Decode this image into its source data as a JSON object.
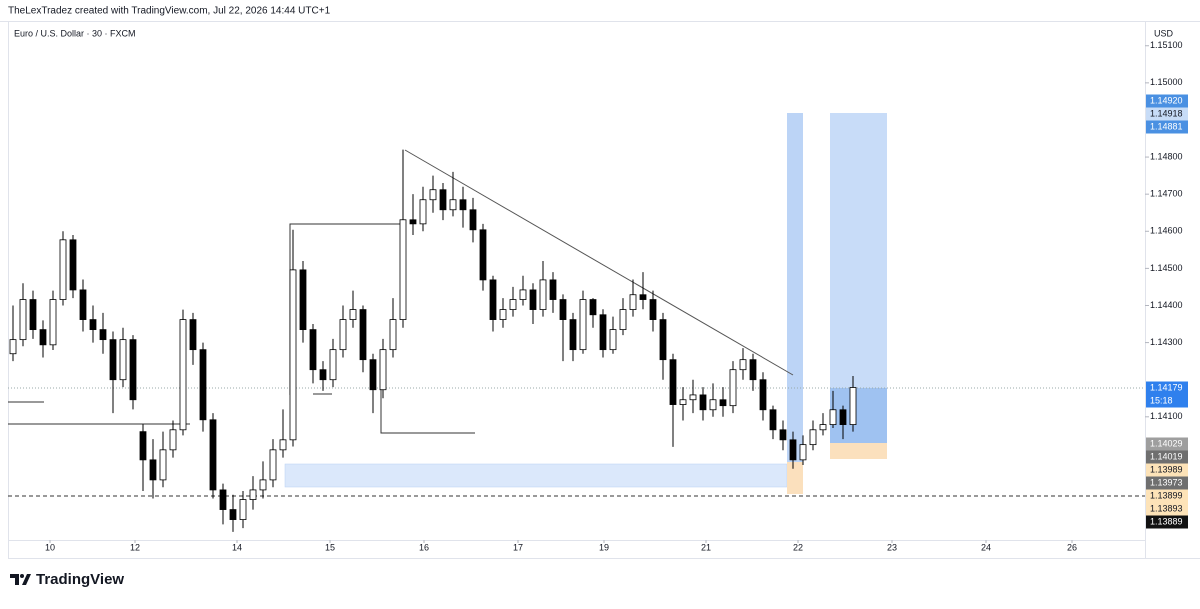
{
  "header": {
    "attribution": "TheLexTradez created with TradingView.com, Jul 22, 2026 14:44 UTC+1",
    "brand": "TradingView"
  },
  "chart_data": {
    "type": "candlestick",
    "title": "Euro / U.S. Dollar · 30 · FXCM",
    "currency": "USD",
    "up_color": "#ffffff",
    "down_color": "#000000",
    "x": [
      0,
      1,
      2,
      3,
      4,
      5,
      6,
      7,
      8,
      9,
      10,
      11,
      12,
      13,
      14,
      15,
      16,
      17,
      18,
      19,
      20,
      21,
      22,
      23,
      24,
      25,
      26,
      27,
      28,
      29,
      30,
      31,
      32,
      33,
      34,
      35,
      36,
      37,
      38,
      39,
      40,
      41,
      42,
      43,
      44,
      45,
      46,
      47,
      48,
      49,
      50,
      51,
      52,
      53,
      54,
      55,
      56,
      57,
      58,
      59,
      60,
      61,
      62,
      63,
      64,
      65,
      66,
      67,
      68,
      69,
      70,
      71,
      72,
      73,
      74,
      75,
      76,
      77,
      78,
      79,
      80,
      81,
      82,
      83,
      84
    ],
    "open": [
      1.1427,
      1.14308,
      1.14416,
      1.14335,
      1.14294,
      1.14416,
      1.14577,
      1.14442,
      1.14362,
      1.14335,
      1.14308,
      1.142,
      1.14308,
      1.1406,
      1.13984,
      1.1393,
      1.14011,
      1.14065,
      1.14362,
      1.14281,
      1.14092,
      1.13903,
      1.1385,
      1.13823,
      1.13877,
      1.13903,
      1.1393,
      1.14011,
      1.14038,
      1.14496,
      1.14335,
      1.14227,
      1.142,
      1.14281,
      1.14362,
      1.14389,
      1.14254,
      1.14173,
      1.14281,
      1.14362,
      1.14631,
      1.1462,
      1.14685,
      1.14712,
      1.14658,
      1.14685,
      1.14658,
      1.14604,
      1.14469,
      1.14362,
      1.14389,
      1.14416,
      1.14442,
      1.14389,
      1.14469,
      1.14416,
      1.14362,
      1.14281,
      1.14416,
      1.14375,
      1.14281,
      1.14335,
      1.14389,
      1.14429,
      1.14416,
      1.14362,
      1.14254,
      1.14133,
      1.14146,
      1.14159,
      1.14119,
      1.14146,
      1.1413,
      1.14227,
      1.14254,
      1.142,
      1.14119,
      1.14065,
      1.14038,
      1.13984,
      1.14025,
      1.14065,
      1.14079,
      1.14119,
      1.14079
    ],
    "high": [
      1.144,
      1.1446,
      1.1444,
      1.1436,
      1.1444,
      1.146,
      1.1459,
      1.1447,
      1.144,
      1.1438,
      1.1433,
      1.1434,
      1.1432,
      1.1408,
      1.1404,
      1.1406,
      1.1409,
      1.14389,
      1.1438,
      1.143,
      1.1411,
      1.1392,
      1.1389,
      1.139,
      1.1394,
      1.1398,
      1.1404,
      1.1412,
      1.14604,
      1.1452,
      1.1435,
      1.1425,
      1.1431,
      1.144,
      1.1444,
      1.144,
      1.1427,
      1.1431,
      1.1442,
      1.1482,
      1.147,
      1.1472,
      1.1475,
      1.1473,
      1.1476,
      1.1472,
      1.1469,
      1.1462,
      1.1448,
      1.1442,
      1.1445,
      1.1448,
      1.1446,
      1.1452,
      1.1449,
      1.1443,
      1.1438,
      1.1444,
      1.1442,
      1.1439,
      1.1437,
      1.1442,
      1.1447,
      1.1449,
      1.1444,
      1.1438,
      1.1427,
      1.1418,
      1.142,
      1.1418,
      1.1419,
      1.1418,
      1.1425,
      1.14285,
      1.1427,
      1.1422,
      1.1413,
      1.1409,
      1.1406,
      1.1405,
      1.1409,
      1.1411,
      1.1417,
      1.1413,
      1.1421
    ],
    "low": [
      1.1425,
      1.1429,
      1.1431,
      1.1426,
      1.1428,
      1.144,
      1.1442,
      1.1433,
      1.143,
      1.1427,
      1.1411,
      1.1418,
      1.1412,
      1.139,
      1.1388,
      1.1391,
      1.1399,
      1.1405,
      1.1424,
      1.1406,
      1.1388,
      1.1381,
      1.1379,
      1.138,
      1.1385,
      1.1388,
      1.1391,
      1.1399,
      1.1402,
      1.143,
      1.1419,
      1.1417,
      1.1418,
      1.1426,
      1.1434,
      1.1422,
      1.1411,
      1.1415,
      1.1426,
      1.1434,
      1.1459,
      1.146,
      1.1465,
      1.1463,
      1.1464,
      1.1461,
      1.1457,
      1.1444,
      1.1433,
      1.1434,
      1.1437,
      1.144,
      1.1435,
      1.1437,
      1.1438,
      1.1425,
      1.1425,
      1.1427,
      1.1434,
      1.1426,
      1.1427,
      1.1432,
      1.1437,
      1.1439,
      1.1433,
      1.142,
      1.14019,
      1.1409,
      1.1411,
      1.1409,
      1.141,
      1.141,
      1.1411,
      1.142,
      1.1417,
      1.1409,
      1.1404,
      1.1401,
      1.1396,
      1.1397,
      1.1401,
      1.1405,
      1.1407,
      1.1404,
      1.1406
    ],
    "close": [
      1.14308,
      1.14416,
      1.14335,
      1.14294,
      1.14416,
      1.14577,
      1.14442,
      1.14362,
      1.14335,
      1.14308,
      1.142,
      1.14308,
      1.14146,
      1.13984,
      1.1393,
      1.14011,
      1.14065,
      1.14362,
      1.14281,
      1.14092,
      1.13903,
      1.1385,
      1.13823,
      1.13877,
      1.13903,
      1.1393,
      1.14011,
      1.14038,
      1.14496,
      1.14335,
      1.14227,
      1.142,
      1.14281,
      1.14362,
      1.14389,
      1.14254,
      1.14173,
      1.14281,
      1.14362,
      1.14631,
      1.1462,
      1.14685,
      1.14712,
      1.14658,
      1.14685,
      1.14658,
      1.14604,
      1.14469,
      1.14362,
      1.14389,
      1.14416,
      1.14442,
      1.14389,
      1.14469,
      1.14416,
      1.14362,
      1.14281,
      1.14416,
      1.14375,
      1.14281,
      1.14335,
      1.14389,
      1.14429,
      1.14416,
      1.14362,
      1.14254,
      1.14133,
      1.14146,
      1.14159,
      1.14119,
      1.14146,
      1.1413,
      1.14227,
      1.14254,
      1.142,
      1.14119,
      1.14065,
      1.14038,
      1.13984,
      1.14025,
      1.14065,
      1.14079,
      1.14119,
      1.14079,
      1.14179
    ],
    "xlim": [
      -0.5,
      113.2
    ],
    "xticks": [
      {
        "value": 3.7,
        "label": "10"
      },
      {
        "value": 12.2,
        "label": "12"
      },
      {
        "value": 22.4,
        "label": "14"
      },
      {
        "value": 31.7,
        "label": "15"
      },
      {
        "value": 41.1,
        "label": "16"
      },
      {
        "value": 50.5,
        "label": "17"
      },
      {
        "value": 59.1,
        "label": "19"
      },
      {
        "value": 69.3,
        "label": "21"
      },
      {
        "value": 78.5,
        "label": "22"
      },
      {
        "value": 87.9,
        "label": "23"
      },
      {
        "value": 97.3,
        "label": "24"
      },
      {
        "value": 105.9,
        "label": "26"
      }
    ],
    "ylim": [
      1.13768,
      1.15164
    ],
    "yticks": [
      {
        "value": 1.151,
        "label": "1.15100"
      },
      {
        "value": 1.15,
        "label": "1.15000"
      },
      {
        "value": 1.148,
        "label": "1.14800"
      },
      {
        "value": 1.147,
        "label": "1.14700"
      },
      {
        "value": 1.146,
        "label": "1.14600"
      },
      {
        "value": 1.145,
        "label": "1.14500"
      },
      {
        "value": 1.144,
        "label": "1.14400"
      },
      {
        "value": 1.143,
        "label": "1.14300"
      },
      {
        "value": 1.141,
        "label": "1.14100"
      }
    ],
    "price_labels": [
      {
        "label": "1.14920",
        "color": "#4a90e2"
      },
      {
        "label": "1.14918",
        "color": "#c7dcf7"
      },
      {
        "label": "1.14881",
        "color": "#4a90e2"
      },
      {
        "label": "1.14179",
        "sub": "15:18",
        "color": "#2f80ed"
      },
      {
        "label": "1.14029",
        "color": "#9e9e9e"
      },
      {
        "label": "1.14019",
        "color": "#6f6f6f"
      },
      {
        "label": "1.13989",
        "color": "#fde3b8"
      },
      {
        "label": "1.13973",
        "color": "#6f6f6f"
      },
      {
        "label": "1.13899",
        "color": "#fde3b8"
      },
      {
        "label": "1.13893",
        "color": "#fde3b8"
      },
      {
        "label": "1.13889",
        "color": "#111111"
      }
    ]
  }
}
